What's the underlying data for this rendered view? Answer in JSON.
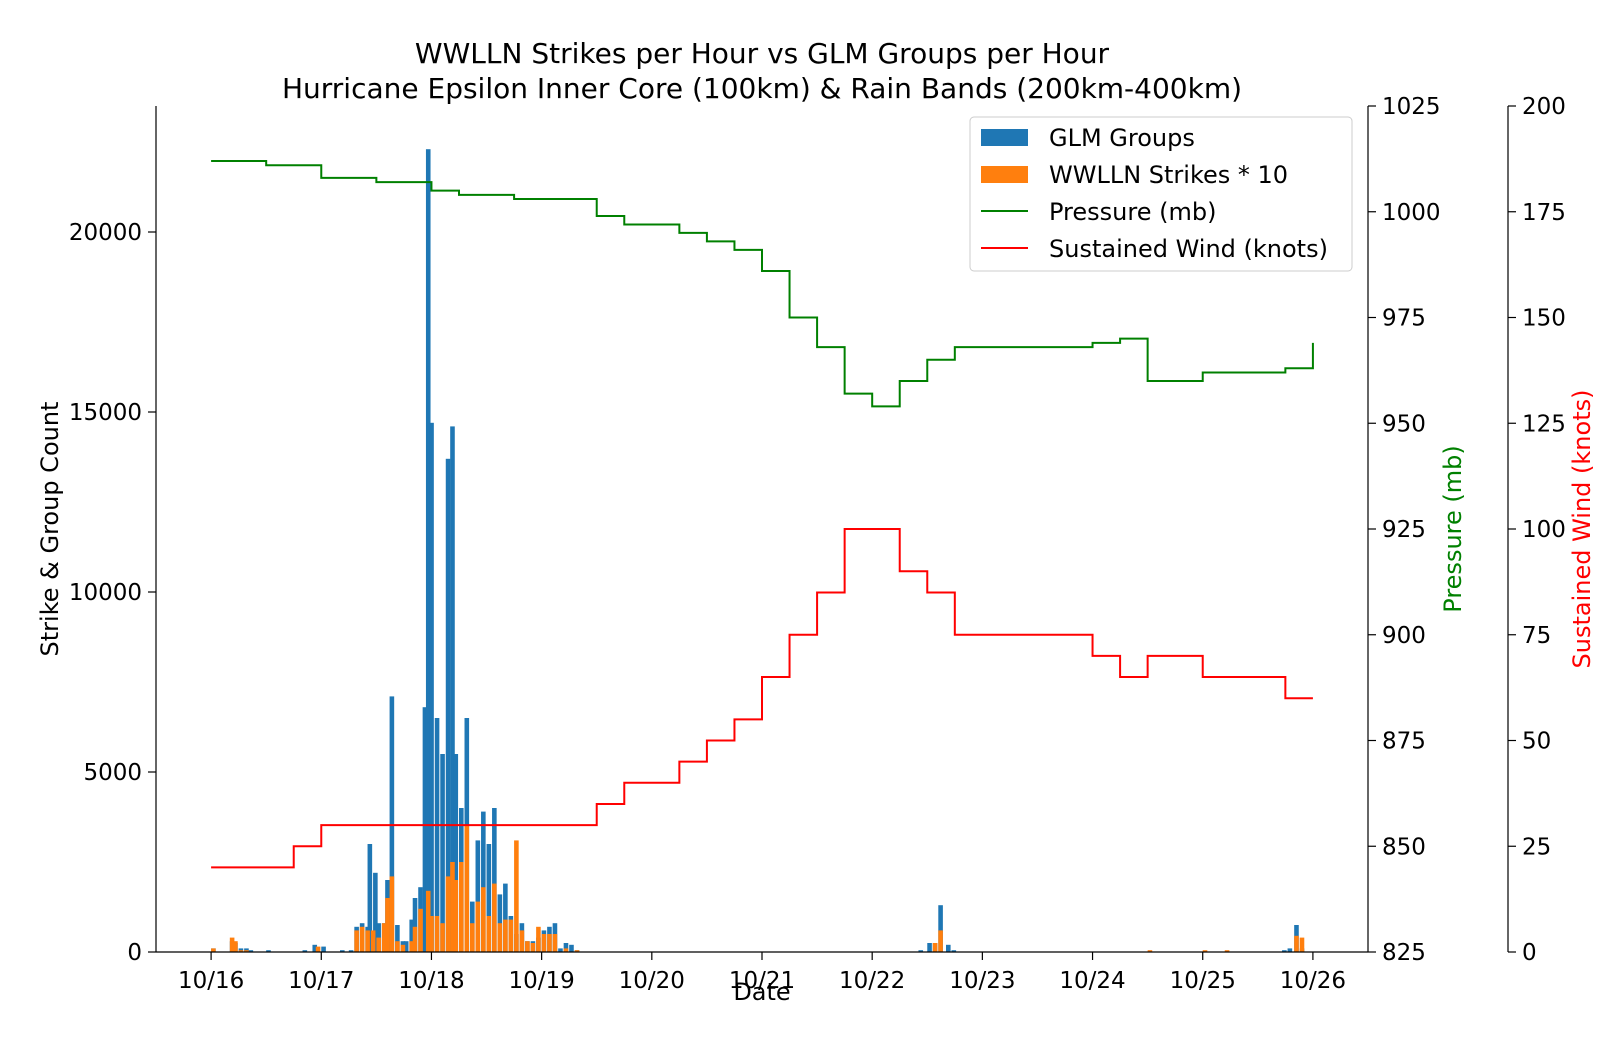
{
  "chart_data": {
    "type": "bar",
    "title_line1": "WWLLN Strikes per Hour vs GLM Groups per Hour",
    "title_line2": "Hurricane Epsilon Inner Core (100km) & Rain Bands (200km-400km)",
    "xlabel": "Date",
    "ylabel": "Strike & Group Count",
    "ylabel_pressure": "Pressure (mb)",
    "ylabel_wind": "Sustained Wind (knots)",
    "x_range_days": [
      -0.5,
      10.5
    ],
    "x_ticks": [
      "10/16",
      "10/17",
      "10/18",
      "10/19",
      "10/20",
      "10/21",
      "10/22",
      "10/23",
      "10/24",
      "10/25",
      "10/26"
    ],
    "y_left": {
      "range": [
        0,
        23500
      ],
      "ticks": [
        0,
        5000,
        10000,
        15000,
        20000
      ],
      "tick_labels": [
        "0",
        "5000",
        "10000",
        "15000",
        "20000"
      ]
    },
    "y_pressure": {
      "range": [
        825,
        1025
      ],
      "ticks": [
        825,
        850,
        875,
        900,
        925,
        950,
        975,
        1000,
        1025
      ],
      "tick_labels": [
        "825",
        "850",
        "875",
        "900",
        "925",
        "950",
        "975",
        "1000",
        "1025"
      ]
    },
    "y_wind": {
      "range": [
        0,
        200
      ],
      "ticks": [
        0,
        25,
        50,
        75,
        100,
        125,
        150,
        175,
        200
      ],
      "tick_labels": [
        "0",
        "25",
        "50",
        "75",
        "100",
        "125",
        "150",
        "175",
        "200"
      ]
    },
    "colors": {
      "glm": "#1f77b4",
      "wwlln": "#ff7f0e",
      "pressure": "#008000",
      "wind": "#ff0000"
    },
    "legend_position": "top-right",
    "legend": [
      "GLM Groups",
      "WWLLN Strikes * 10",
      "Pressure (mb)",
      "Sustained Wind (knots)"
    ],
    "glm_groups": [
      [
        0.0,
        100
      ],
      [
        0.17,
        300
      ],
      [
        0.2,
        250
      ],
      [
        0.25,
        100
      ],
      [
        0.3,
        100
      ],
      [
        0.34,
        50
      ],
      [
        0.5,
        50
      ],
      [
        0.83,
        50
      ],
      [
        0.92,
        200
      ],
      [
        1.0,
        150
      ],
      [
        1.17,
        50
      ],
      [
        1.25,
        50
      ],
      [
        1.3,
        700
      ],
      [
        1.35,
        800
      ],
      [
        1.4,
        700
      ],
      [
        1.42,
        3000
      ],
      [
        1.47,
        2200
      ],
      [
        1.5,
        800
      ],
      [
        1.55,
        800
      ],
      [
        1.58,
        2000
      ],
      [
        1.62,
        7100
      ],
      [
        1.67,
        750
      ],
      [
        1.72,
        300
      ],
      [
        1.75,
        300
      ],
      [
        1.8,
        900
      ],
      [
        1.83,
        1500
      ],
      [
        1.88,
        1800
      ],
      [
        1.92,
        6800
      ],
      [
        1.95,
        22300
      ],
      [
        1.98,
        14700
      ],
      [
        2.03,
        6500
      ],
      [
        2.08,
        5500
      ],
      [
        2.13,
        13700
      ],
      [
        2.17,
        14600
      ],
      [
        2.2,
        5500
      ],
      [
        2.25,
        4000
      ],
      [
        2.3,
        6500
      ],
      [
        2.35,
        1400
      ],
      [
        2.4,
        3100
      ],
      [
        2.45,
        3900
      ],
      [
        2.5,
        3000
      ],
      [
        2.55,
        4000
      ],
      [
        2.6,
        1600
      ],
      [
        2.65,
        1900
      ],
      [
        2.7,
        1000
      ],
      [
        2.75,
        500
      ],
      [
        2.8,
        800
      ],
      [
        2.85,
        300
      ],
      [
        2.9,
        300
      ],
      [
        2.95,
        400
      ],
      [
        3.0,
        600
      ],
      [
        3.05,
        700
      ],
      [
        3.1,
        800
      ],
      [
        3.15,
        100
      ],
      [
        3.2,
        250
      ],
      [
        3.25,
        200
      ],
      [
        3.3,
        50
      ],
      [
        6.42,
        50
      ],
      [
        6.5,
        250
      ],
      [
        6.55,
        250
      ],
      [
        6.6,
        1300
      ],
      [
        6.67,
        200
      ],
      [
        6.72,
        50
      ],
      [
        9.72,
        50
      ],
      [
        9.77,
        100
      ],
      [
        9.83,
        750
      ],
      [
        9.88,
        100
      ]
    ],
    "wwlln_strikes_x10": [
      [
        0.0,
        100
      ],
      [
        0.17,
        400
      ],
      [
        0.2,
        300
      ],
      [
        0.25,
        50
      ],
      [
        0.3,
        50
      ],
      [
        0.95,
        150
      ],
      [
        1.3,
        600
      ],
      [
        1.35,
        700
      ],
      [
        1.4,
        600
      ],
      [
        1.45,
        600
      ],
      [
        1.5,
        400
      ],
      [
        1.55,
        800
      ],
      [
        1.58,
        1500
      ],
      [
        1.62,
        2100
      ],
      [
        1.67,
        300
      ],
      [
        1.72,
        200
      ],
      [
        1.8,
        300
      ],
      [
        1.83,
        700
      ],
      [
        1.88,
        1200
      ],
      [
        1.95,
        1700
      ],
      [
        1.98,
        1000
      ],
      [
        2.03,
        1000
      ],
      [
        2.08,
        800
      ],
      [
        2.13,
        2100
      ],
      [
        2.17,
        2500
      ],
      [
        2.2,
        2000
      ],
      [
        2.25,
        2500
      ],
      [
        2.3,
        3500
      ],
      [
        2.35,
        800
      ],
      [
        2.4,
        1400
      ],
      [
        2.45,
        1800
      ],
      [
        2.5,
        1000
      ],
      [
        2.55,
        1900
      ],
      [
        2.6,
        800
      ],
      [
        2.65,
        900
      ],
      [
        2.7,
        900
      ],
      [
        2.75,
        3100
      ],
      [
        2.8,
        600
      ],
      [
        2.85,
        300
      ],
      [
        2.9,
        250
      ],
      [
        2.95,
        700
      ],
      [
        3.0,
        500
      ],
      [
        3.05,
        500
      ],
      [
        3.1,
        500
      ],
      [
        3.2,
        100
      ],
      [
        3.3,
        50
      ],
      [
        6.55,
        250
      ],
      [
        6.6,
        600
      ],
      [
        8.5,
        50
      ],
      [
        9.0,
        50
      ],
      [
        9.2,
        50
      ],
      [
        9.83,
        450
      ],
      [
        9.88,
        400
      ]
    ],
    "pressure_mb": [
      [
        0.0,
        1012
      ],
      [
        0.5,
        1011
      ],
      [
        1.0,
        1008
      ],
      [
        1.5,
        1007
      ],
      [
        2.0,
        1005
      ],
      [
        2.25,
        1004
      ],
      [
        2.75,
        1003
      ],
      [
        3.5,
        999
      ],
      [
        3.75,
        997
      ],
      [
        4.25,
        995
      ],
      [
        4.5,
        993
      ],
      [
        4.75,
        991
      ],
      [
        5.0,
        986
      ],
      [
        5.25,
        975
      ],
      [
        5.5,
        968
      ],
      [
        5.75,
        957
      ],
      [
        6.0,
        954
      ],
      [
        6.25,
        960
      ],
      [
        6.5,
        965
      ],
      [
        6.75,
        968
      ],
      [
        8.0,
        969
      ],
      [
        8.25,
        970
      ],
      [
        8.5,
        960
      ],
      [
        9.0,
        962
      ],
      [
        9.75,
        963
      ],
      [
        10.0,
        969
      ]
    ],
    "sustained_wind_knots": [
      [
        0.0,
        20
      ],
      [
        0.75,
        25
      ],
      [
        1.0,
        30
      ],
      [
        3.5,
        35
      ],
      [
        3.75,
        40
      ],
      [
        4.25,
        45
      ],
      [
        4.5,
        50
      ],
      [
        4.75,
        55
      ],
      [
        5.0,
        65
      ],
      [
        5.25,
        75
      ],
      [
        5.5,
        85
      ],
      [
        5.75,
        100
      ],
      [
        6.25,
        90
      ],
      [
        6.5,
        85
      ],
      [
        6.75,
        75
      ],
      [
        8.0,
        70
      ],
      [
        8.25,
        65
      ],
      [
        8.5,
        70
      ],
      [
        9.0,
        65
      ],
      [
        9.75,
        60
      ],
      [
        10.0,
        60
      ]
    ]
  }
}
